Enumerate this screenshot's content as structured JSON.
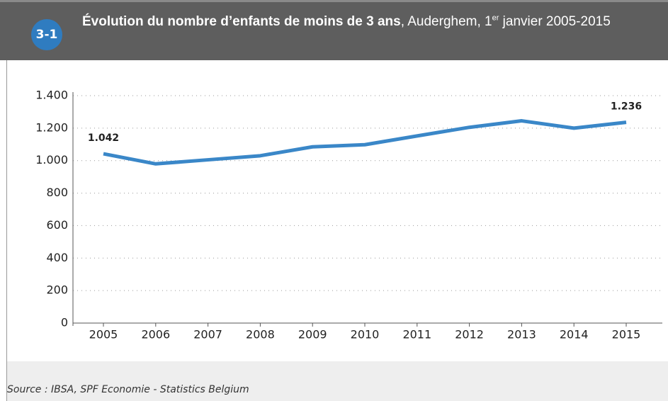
{
  "badge": "3-1",
  "chart_data": {
    "type": "line",
    "title": "Évolution du nombre d’enfants de moins de 3 ans",
    "subtitle": ", Auderghem, 1",
    "subtitle_sup": "er",
    "subtitle_end": " janvier 2005-2015",
    "source": "Source : IBSA, SPF Economie - Statistics Belgium",
    "categories": [
      "2005",
      "2006",
      "2007",
      "2008",
      "2009",
      "2010",
      "2011",
      "2012",
      "2013",
      "2014",
      "2015"
    ],
    "series": [
      {
        "name": "Enfants de moins de 3 ans",
        "color": "#3a87c8",
        "values": [
          1042,
          980,
          1005,
          1030,
          1085,
          1098,
          1152,
          1205,
          1245,
          1200,
          1236
        ],
        "value_labels": [
          "1.042",
          null,
          null,
          null,
          null,
          null,
          null,
          null,
          null,
          null,
          "1.236"
        ]
      }
    ],
    "ylim": [
      0,
      1400
    ],
    "yticks": [
      0,
      200,
      400,
      600,
      800,
      {
        "value": 1000,
        "label": "1.000"
      },
      {
        "value": 1200,
        "label": "1.200"
      },
      {
        "value": 1400,
        "label": "1.400"
      }
    ],
    "grid": true
  }
}
